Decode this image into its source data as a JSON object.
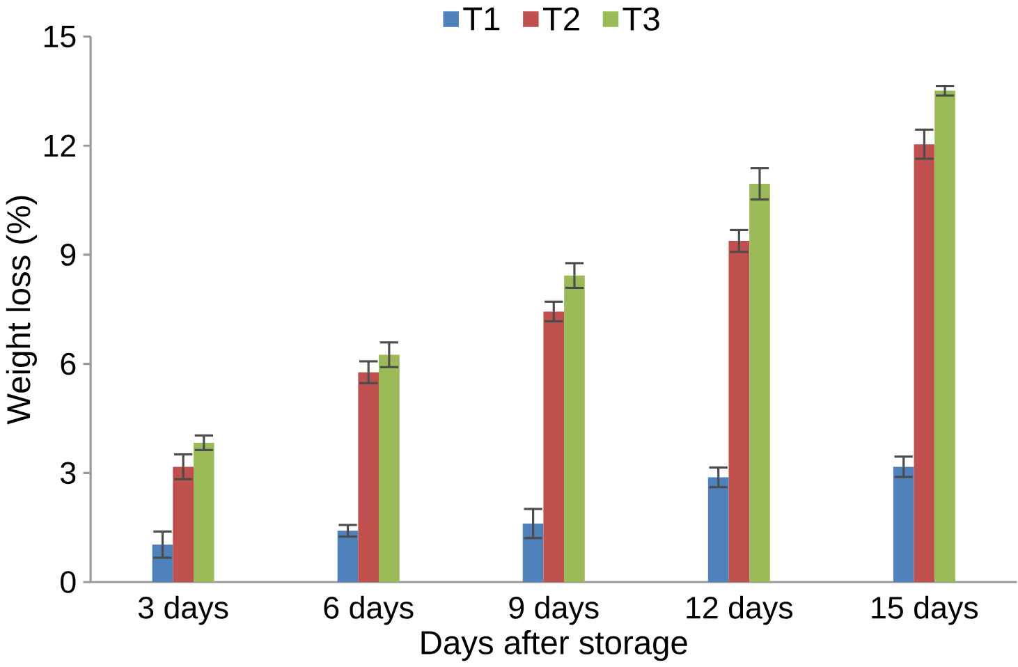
{
  "chart_data": {
    "type": "bar",
    "xlabel": "Days after storage",
    "ylabel": "Weight loss (%)",
    "categories": [
      "3 days",
      "6 days",
      "9 days",
      "12 days",
      "15 days"
    ],
    "series": [
      {
        "name": "T1",
        "color": "#4f81bd",
        "values": [
          1.03,
          1.41,
          1.61,
          2.88,
          3.17
        ],
        "errors": [
          0.36,
          0.16,
          0.4,
          0.27,
          0.28
        ]
      },
      {
        "name": "T2",
        "color": "#c0504d",
        "values": [
          3.17,
          5.77,
          7.44,
          9.38,
          12.04
        ],
        "errors": [
          0.34,
          0.3,
          0.27,
          0.3,
          0.4
        ]
      },
      {
        "name": "T3",
        "color": "#9bbb59",
        "values": [
          3.83,
          6.25,
          8.43,
          10.95,
          13.51
        ],
        "errors": [
          0.2,
          0.34,
          0.34,
          0.43,
          0.13
        ]
      }
    ],
    "ylim": [
      0,
      15
    ],
    "yticks": [
      0,
      3,
      6,
      9,
      12,
      15
    ],
    "legend": "top",
    "grid": false
  }
}
